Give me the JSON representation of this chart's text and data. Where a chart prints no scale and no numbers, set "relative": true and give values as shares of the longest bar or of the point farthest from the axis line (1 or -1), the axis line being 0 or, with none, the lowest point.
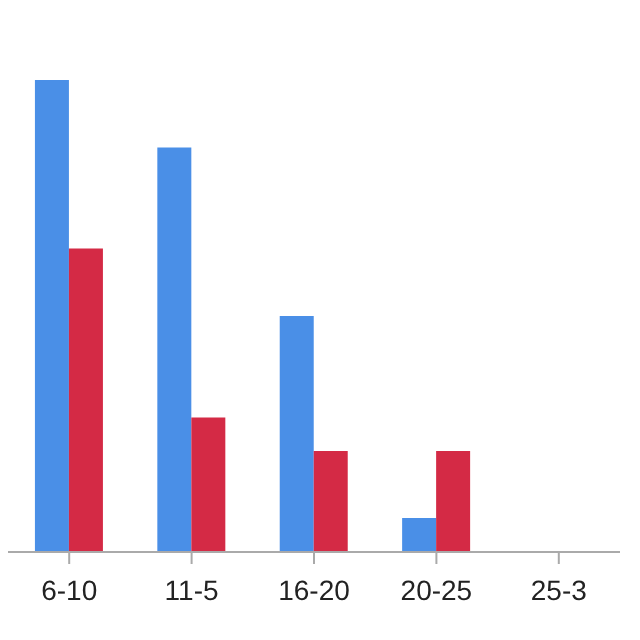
{
  "chart_data": {
    "type": "bar",
    "relative": true,
    "categories": [
      "6-10",
      "11-5",
      "16-20",
      "20-25",
      "25-3"
    ],
    "series": [
      {
        "color": "#4a8fe7",
        "values": [
          1,
          0.857,
          0.5,
          0.072,
          0
        ]
      },
      {
        "color": "#d42a45",
        "values": [
          0.643,
          0.285,
          0.214,
          0.214,
          0
        ]
      }
    ],
    "grid": false,
    "legend": false
  }
}
